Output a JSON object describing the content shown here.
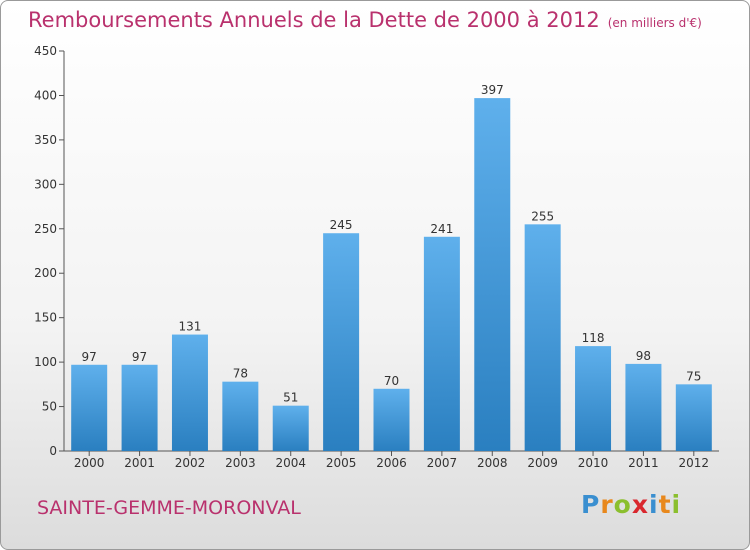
{
  "header": {
    "title": "Remboursements Annuels de la Dette de 2000 à 2012",
    "subtitle": "(en milliers d'€)"
  },
  "footer": {
    "commune": "SAINTE-GEMME-MORONVAL",
    "logo_letters": [
      "P",
      "r",
      "o",
      "x",
      "i",
      "t",
      "i"
    ]
  },
  "colors": {
    "title": "#b9316d",
    "bar_top": "#5fb0ec",
    "bar_bottom": "#2a7fc0",
    "logo": [
      "#3a8fd0",
      "#e8881c",
      "#8bbf2e",
      "#d9272e",
      "#3a8fd0",
      "#e8881c",
      "#8bbf2e"
    ]
  },
  "chart_data": {
    "type": "bar",
    "title": "Remboursements Annuels de la Dette de 2000 à 2012",
    "subtitle": "(en milliers d'€)",
    "categories": [
      "2000",
      "2001",
      "2002",
      "2003",
      "2004",
      "2005",
      "2006",
      "2007",
      "2008",
      "2009",
      "2010",
      "2011",
      "2012"
    ],
    "values": [
      97,
      97,
      131,
      78,
      51,
      245,
      70,
      241,
      397,
      255,
      118,
      98,
      75
    ],
    "ylim": [
      0,
      450
    ],
    "yticks": [
      0,
      50,
      100,
      150,
      200,
      250,
      300,
      350,
      400,
      450
    ],
    "grid": false,
    "legend": "none"
  }
}
